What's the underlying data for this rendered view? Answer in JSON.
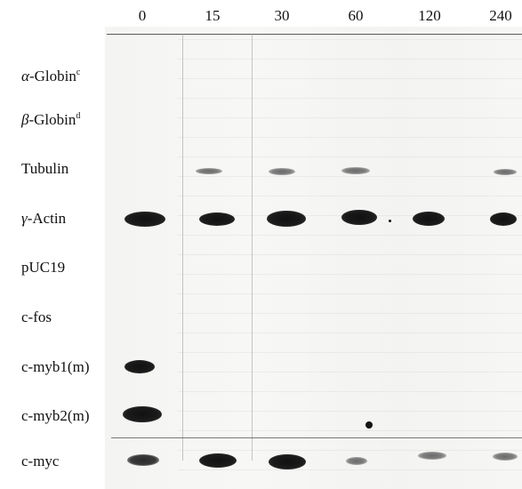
{
  "figure": {
    "time_points": [
      "0",
      "15",
      "30",
      "60",
      "120",
      "240"
    ],
    "rows": [
      {
        "label_prefix": "α",
        "label_main": "-Globin",
        "label_sup": "c"
      },
      {
        "label_prefix": "β",
        "label_main": "-Globin",
        "label_sup": "d"
      },
      {
        "label_prefix": "",
        "label_main": "Tubulin",
        "label_sup": ""
      },
      {
        "label_prefix": "γ",
        "label_main": "-Actin",
        "label_sup": ""
      },
      {
        "label_prefix": "",
        "label_main": "pUC19",
        "label_sup": ""
      },
      {
        "label_prefix": "",
        "label_main": "c-fos",
        "label_sup": ""
      },
      {
        "label_prefix": "",
        "label_main": "c-myb1(m)",
        "label_sup": ""
      },
      {
        "label_prefix": "",
        "label_main": "c-myb2(m)",
        "label_sup": ""
      },
      {
        "label_prefix": "",
        "label_main": "c-myc",
        "label_sup": ""
      }
    ]
  }
}
